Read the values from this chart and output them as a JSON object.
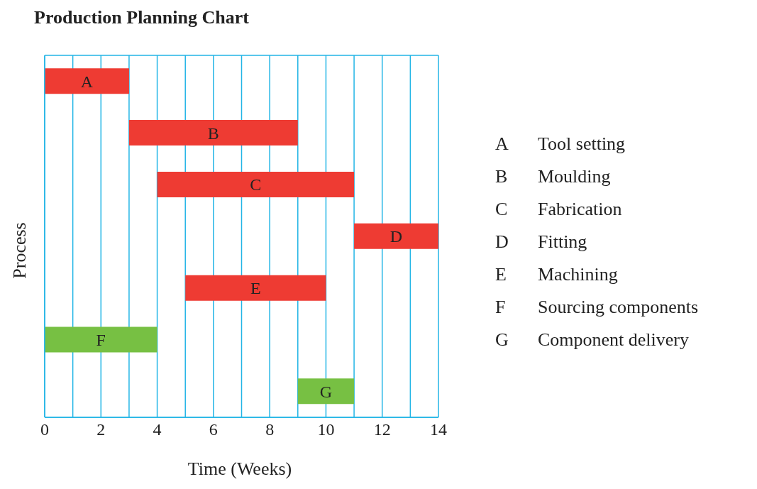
{
  "chart_data": {
    "type": "bar",
    "orientation": "horizontal",
    "title": "Production Planning Chart",
    "xlabel": "Time (Weeks)",
    "ylabel": "Process",
    "categories": [
      null,
      null,
      null,
      null,
      null,
      null,
      null
    ],
    "value_labels": [
      "A",
      "B",
      "C",
      "D",
      "E",
      "F",
      "G"
    ],
    "values": [
      3,
      6,
      7,
      3,
      5,
      4,
      2
    ],
    "base": [
      0,
      3,
      4,
      11,
      5,
      0,
      9
    ],
    "colors": [
      "#ee3b33",
      "#ee3b33",
      "#ee3b33",
      "#ee3b33",
      "#ee3b33",
      "#77c043",
      "#77c043"
    ],
    "xlim": [
      0,
      14
    ],
    "xticks": [
      0,
      {
        "value": 1,
        "label": null
      },
      2,
      {
        "value": 3,
        "label": null
      },
      4,
      {
        "value": 5,
        "label": null
      },
      6,
      {
        "value": 7,
        "label": null
      },
      8,
      {
        "value": 9,
        "label": null
      },
      10,
      {
        "value": 11,
        "label": null
      },
      12,
      {
        "value": 13,
        "label": null
      },
      14
    ],
    "grid": "x",
    "annotations": [
      "Tool setting",
      "Moulding",
      "Fabrication",
      "Fitting",
      "Machining",
      "Sourcing components",
      "Component delivery"
    ]
  }
}
